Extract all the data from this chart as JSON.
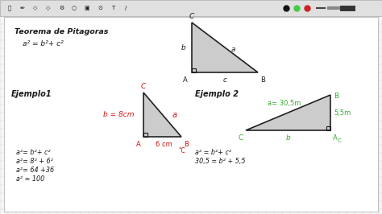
{
  "bg_color": "#f5f5f5",
  "toolbar_bg": "#e0e0e0",
  "grid_color": "#c8c8d8",
  "content_bg": "#ffffff",
  "text_color": "#1a1a1a",
  "red_color": "#cc1111",
  "green_color": "#33aa33",
  "triangle_fill": "#cccccc",
  "triangle_edge": "#222222",
  "title": "Teorema de Pitagoras",
  "formula": "a² = b²+ c²",
  "ej1_title": "Ejemplo1",
  "ej2_title": "Ejemplo 2",
  "ej1_b": "b = 8cm",
  "ej1_base": "6 cm",
  "ej2_a": "a= 30,5m",
  "ej2_c": "5,5m",
  "eq1_1": "a²= b²+ c²",
  "eq1_2": "a²= 8² + 6²",
  "eq1_3": "a²= 64 +36",
  "eq1_4": "a² = 100",
  "eq2_1": "a² = b²+ c²",
  "eq2_2": "30,5 = b² + 5,5"
}
